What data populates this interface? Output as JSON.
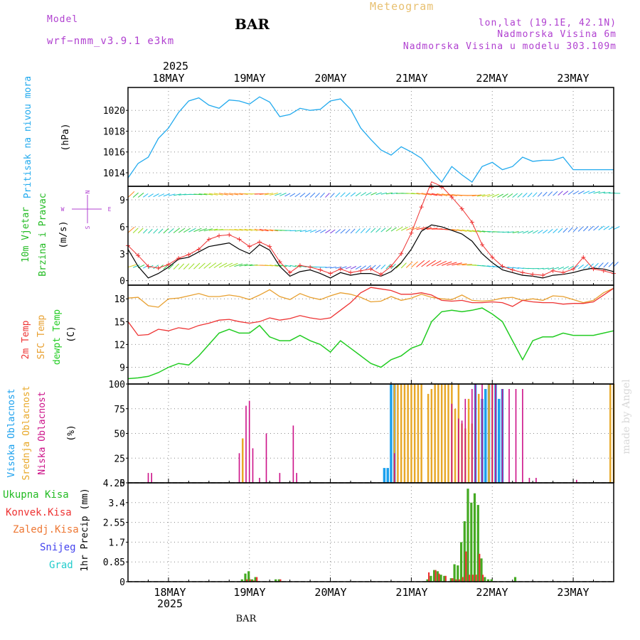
{
  "header": {
    "model_label": "Model",
    "model_name": "wrf−nmm_v3.9.1  e3km",
    "station": "BAR",
    "meteogram": "Meteogram",
    "coords": "lon,lat (19.1E, 42.1N)",
    "elevation": "Nadmorska Visina 6m",
    "model_elevation": "Nadmorska Visina u modelu 303.109m"
  },
  "footer": {
    "station": "BAR",
    "credit": "made by Angel"
  },
  "colors": {
    "pressure": "#22aaee",
    "temp2m": "#ee3333",
    "sfc": "#e8a030",
    "dewpt": "#22cc22",
    "high": "#1aa0ee",
    "mid": "#e8a828",
    "low": "#cc1188",
    "total": "#44aa22",
    "conv": "#ee3333",
    "frozen": "#ee7733",
    "snow": "#4444ee",
    "grad": "#22cccc",
    "purple": "#b040d0"
  },
  "x_axis": {
    "year": "2025",
    "days": [
      "18MAY",
      "19MAY",
      "20MAY",
      "21MAY",
      "22MAY",
      "23MAY"
    ]
  },
  "panels": {
    "pressure": {
      "label": "Pritisak na nivou mora",
      "unit": "(hPa)"
    },
    "wind": {
      "label1": "10m Vjetar",
      "label2": "Brzina i Pravac",
      "unit": "(m/s)",
      "compass_n": "N",
      "compass_s": "S",
      "compass_w": "W",
      "compass_e": "E"
    },
    "temp": {
      "label1": "2m Temp",
      "label2": "SFC Temp",
      "label3": "dewpt Temp",
      "unit": "(C)"
    },
    "cloud": {
      "label1": "Visoka Oblacnost",
      "label2": "Srednja Oblacnost",
      "label3": "Niska Oblacnost",
      "unit": "(%)"
    },
    "precip": {
      "unit": "1hr Precip (mm)",
      "legend": [
        "Ukupna Kisa",
        "Konvek.Kisa",
        "Zaledj.Kisa",
        "Snijeg",
        "Grad"
      ]
    }
  },
  "chart_data": [
    {
      "type": "line",
      "title": "Pritisak na nivou mora",
      "ylabel": "(hPa)",
      "ylim": [
        1012.7,
        1022.2
      ],
      "yticks": [
        1014,
        1016,
        1018,
        1020
      ],
      "x": [
        0,
        3,
        6,
        9,
        12,
        15,
        18,
        21,
        24,
        27,
        30,
        33,
        36,
        39,
        42,
        45,
        48,
        51,
        54,
        57,
        60,
        63,
        66,
        69,
        72,
        75,
        78,
        81,
        84,
        87,
        90,
        93,
        96,
        99,
        102,
        105,
        108,
        111,
        114,
        117,
        120,
        123,
        126,
        129,
        132,
        135,
        138,
        141,
        144
      ],
      "series": [
        {
          "name": "MSLP",
          "values": [
            1013.5,
            1014.9,
            1015.5,
            1017.3,
            1018.3,
            1019.8,
            1020.9,
            1021.2,
            1020.5,
            1020.2,
            1021.0,
            1020.9,
            1020.6,
            1021.3,
            1020.8,
            1019.4,
            1019.6,
            1020.2,
            1020.0,
            1020.1,
            1020.9,
            1021.1,
            1020.1,
            1018.3,
            1017.2,
            1016.2,
            1015.7,
            1016.5,
            1016.0,
            1015.4,
            1014.2,
            1013.1,
            1014.6,
            1013.8,
            1013.1,
            1014.6,
            1015.0,
            1014.3,
            1014.6,
            1015.5,
            1015.1,
            1015.2,
            1015.2,
            1015.5,
            1014.3,
            1014.3,
            1014.3,
            1014.3,
            1014.3
          ]
        }
      ]
    },
    {
      "type": "line",
      "title": "10m Vjetar Brzina i Pravac",
      "ylabel": "(m/s)",
      "ylim": [
        -0.5,
        10.5
      ],
      "yticks": [
        0,
        3,
        6,
        9
      ],
      "x": [
        0,
        3,
        6,
        9,
        12,
        15,
        18,
        21,
        24,
        27,
        30,
        33,
        36,
        39,
        42,
        45,
        48,
        51,
        54,
        57,
        60,
        63,
        66,
        69,
        72,
        75,
        78,
        81,
        84,
        87,
        90,
        93,
        96,
        99,
        102,
        105,
        108,
        111,
        114,
        117,
        120,
        123,
        126,
        129,
        132,
        135,
        138,
        141,
        144
      ],
      "series": [
        {
          "name": "Wind speed (black)",
          "values": [
            3.5,
            1.6,
            0.3,
            0.8,
            1.5,
            2.4,
            2.6,
            3.2,
            3.8,
            4.0,
            4.2,
            3.5,
            3.0,
            4.0,
            3.4,
            1.6,
            0.5,
            1.0,
            1.2,
            0.8,
            0.3,
            0.9,
            0.6,
            0.8,
            0.8,
            0.5,
            1.0,
            2.0,
            3.5,
            5.5,
            6.2,
            6.0,
            5.6,
            5.2,
            4.4,
            3.0,
            2.0,
            1.2,
            0.9,
            0.6,
            0.5,
            0.3,
            0.6,
            0.7,
            0.9,
            1.2,
            1.4,
            1.3,
            1.0
          ]
        },
        {
          "name": "Wind gust (red +)",
          "values": [
            3.9,
            2.8,
            1.6,
            1.4,
            1.8,
            2.5,
            2.9,
            3.5,
            4.6,
            5.0,
            5.1,
            4.6,
            3.8,
            4.3,
            3.8,
            2.1,
            0.9,
            1.7,
            1.5,
            1.2,
            0.8,
            1.3,
            0.9,
            1.1,
            1.3,
            0.7,
            1.6,
            3.0,
            5.3,
            8.2,
            11.0,
            10.5,
            9.3,
            8.0,
            6.5,
            4.0,
            2.6,
            1.6,
            1.2,
            0.9,
            0.7,
            0.6,
            1.1,
            0.9,
            1.3,
            2.6,
            1.3,
            1.1,
            0.8
          ]
        }
      ]
    },
    {
      "type": "line",
      "title": "2m Temp / SFC Temp / dewpt Temp",
      "ylabel": "(C)",
      "ylim": [
        6.8,
        19.8
      ],
      "yticks": [
        9,
        12,
        15,
        18
      ],
      "x": [
        0,
        3,
        6,
        9,
        12,
        15,
        18,
        21,
        24,
        27,
        30,
        33,
        36,
        39,
        42,
        45,
        48,
        51,
        54,
        57,
        60,
        63,
        66,
        69,
        72,
        75,
        78,
        81,
        84,
        87,
        90,
        93,
        96,
        99,
        102,
        105,
        108,
        111,
        114,
        117,
        120,
        123,
        126,
        129,
        132,
        135,
        138,
        141,
        144
      ],
      "series": [
        {
          "name": "2m Temp",
          "values": [
            15.0,
            13.2,
            13.3,
            14.0,
            13.8,
            14.2,
            14.0,
            14.5,
            14.8,
            15.2,
            15.3,
            15.0,
            14.8,
            15.0,
            15.5,
            15.2,
            15.4,
            15.8,
            15.5,
            15.3,
            15.5,
            16.5,
            17.5,
            18.8,
            19.5,
            19.3,
            19.1,
            18.6,
            18.6,
            18.8,
            18.5,
            17.8,
            17.7,
            17.8,
            17.5,
            17.5,
            17.6,
            17.5,
            17.0,
            17.8,
            17.6,
            17.5,
            17.5,
            17.3,
            17.4,
            17.4,
            17.6,
            18.5,
            19.4
          ]
        },
        {
          "name": "SFC Temp",
          "values": [
            18.1,
            18.2,
            17.1,
            16.9,
            18.0,
            18.1,
            18.4,
            18.7,
            18.3,
            18.3,
            18.5,
            18.3,
            17.9,
            18.5,
            19.2,
            18.3,
            17.9,
            18.7,
            18.2,
            17.9,
            18.4,
            18.8,
            18.6,
            18.2,
            17.6,
            17.7,
            18.3,
            17.8,
            18.1,
            18.6,
            18.2,
            18.0,
            17.9,
            18.5,
            17.8,
            17.7,
            17.8,
            18.1,
            18.2,
            17.8,
            18.0,
            17.8,
            18.4,
            18.3,
            17.9,
            17.5,
            17.8,
            18.8,
            19.4
          ]
        },
        {
          "name": "dewpt Temp",
          "values": [
            7.5,
            7.6,
            7.8,
            8.3,
            9.0,
            9.5,
            9.3,
            10.5,
            12.0,
            13.5,
            14.0,
            13.5,
            13.5,
            14.5,
            13.0,
            12.5,
            12.5,
            13.2,
            12.5,
            12.0,
            11.0,
            12.5,
            11.5,
            10.5,
            9.5,
            9.0,
            10.0,
            10.5,
            11.5,
            12.0,
            15.0,
            16.3,
            16.5,
            16.3,
            16.5,
            16.8,
            16.0,
            15.0,
            12.5,
            10.0,
            12.5,
            13.0,
            13.0,
            13.5,
            13.2,
            13.2,
            13.2,
            13.5,
            13.8
          ]
        }
      ]
    },
    {
      "type": "bar",
      "title": "Visoka / Srednja / Niska Oblacnost",
      "ylabel": "(%)",
      "ylim": [
        0,
        100
      ],
      "yticks": [
        0,
        25,
        50,
        75,
        100
      ],
      "series": [
        {
          "name": "Visoka Oblacnost",
          "hours": [
            76,
            77,
            78,
            79,
            103,
            105,
            106,
            107,
            109,
            110,
            111
          ],
          "values": [
            15,
            15,
            100,
            100,
            100,
            85,
            95,
            100,
            100,
            85,
            95
          ]
        },
        {
          "name": "Srednja Oblacnost",
          "hours": [
            34,
            79,
            80,
            81,
            82,
            83,
            84,
            85,
            86,
            87,
            89,
            90,
            91,
            92,
            93,
            94,
            95,
            96,
            97,
            98,
            99,
            100,
            101,
            102,
            104,
            107,
            108,
            143,
            144
          ],
          "values": [
            45,
            100,
            100,
            100,
            100,
            100,
            100,
            100,
            100,
            100,
            90,
            95,
            100,
            100,
            100,
            100,
            100,
            100,
            75,
            100,
            60,
            55,
            85,
            60,
            90,
            100,
            100,
            100,
            100
          ]
        },
        {
          "name": "Niska Oblacnost",
          "hours": [
            6,
            7,
            33,
            35,
            36,
            37,
            39,
            41,
            45,
            49,
            50,
            79,
            96,
            98,
            99,
            100,
            102,
            103,
            105,
            108,
            109,
            111,
            113,
            115,
            117,
            119,
            121,
            133
          ],
          "values": [
            10,
            10,
            30,
            78,
            83,
            35,
            5,
            50,
            10,
            58,
            10,
            30,
            80,
            65,
            63,
            85,
            95,
            100,
            100,
            100,
            100,
            95,
            95,
            95,
            95,
            5,
            5,
            3
          ]
        }
      ]
    },
    {
      "type": "bar",
      "title": "1hr Precip",
      "ylabel": "1hr Precip (mm)",
      "ylim": [
        0,
        4.25
      ],
      "yticks": [
        0,
        0.85,
        1.7,
        2.55,
        3.4,
        4.25
      ],
      "series": [
        {
          "name": "Ukupna Kisa",
          "hours": [
            34,
            35,
            36,
            37,
            38,
            44,
            45,
            89,
            90,
            91,
            92,
            93,
            94,
            96,
            97,
            98,
            99,
            100,
            101,
            102,
            103,
            104,
            105,
            106,
            107,
            108,
            115
          ],
          "values": [
            0.1,
            0.35,
            0.45,
            0.1,
            0.2,
            0.1,
            0.1,
            0.1,
            0.25,
            0.5,
            0.45,
            0.3,
            0.25,
            0.15,
            0.75,
            0.7,
            1.7,
            2.6,
            4.0,
            3.4,
            3.8,
            3.3,
            1.0,
            0.2,
            0.1,
            0.1,
            0.2
          ]
        },
        {
          "name": "Konvek.Kisa",
          "hours": [
            35,
            36,
            37,
            38,
            45,
            89,
            91,
            92,
            94,
            96,
            97,
            98,
            99,
            100,
            101,
            102,
            103,
            104,
            105
          ],
          "values": [
            0.1,
            0.1,
            0.05,
            0.2,
            0.1,
            0.4,
            0.5,
            0.35,
            0.25,
            0.15,
            0.1,
            0.1,
            0.2,
            1.3,
            0.3,
            0.3,
            0.3,
            1.2,
            0.3
          ]
        }
      ]
    }
  ]
}
